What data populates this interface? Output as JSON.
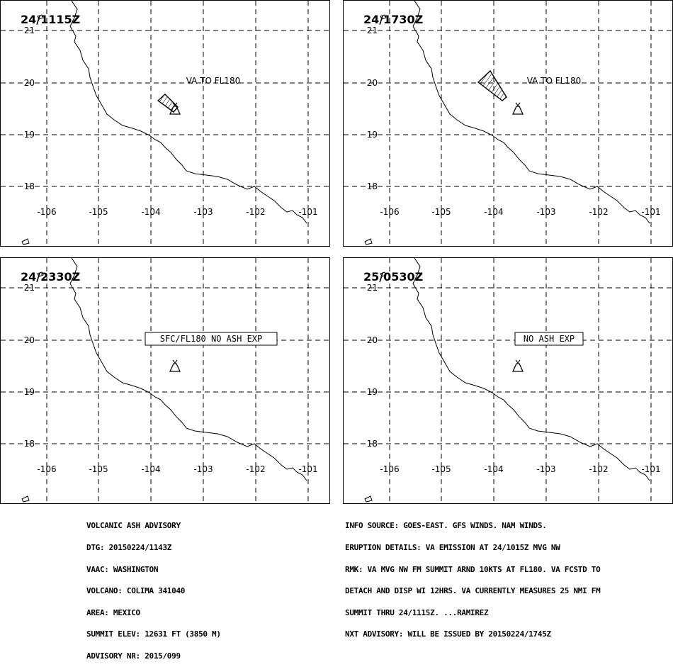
{
  "map": {
    "lon_ticks": [
      "-106",
      "-105",
      "-104",
      "-103",
      "-102",
      "-101"
    ],
    "lat_ticks": [
      "21",
      "20",
      "19",
      "18"
    ],
    "colors": {
      "line": "#000000",
      "background": "#ffffff"
    }
  },
  "panels": [
    {
      "time": "24/1115Z",
      "label": "VA TO FL180",
      "boxed": false
    },
    {
      "time": "24/1730Z",
      "label": "VA TO FL180",
      "boxed": false
    },
    {
      "time": "24/2330Z",
      "label": "SFC/FL180  NO  ASH  EXP",
      "boxed": true
    },
    {
      "time": "25/0530Z",
      "label": "NO  ASH  EXP",
      "boxed": true
    }
  ],
  "advisory_left": {
    "lines": [
      "VOLCANIC ASH ADVISORY",
      "DTG: 20150224/1143Z",
      "VAAC: WASHINGTON",
      "VOLCANO: COLIMA 341040",
      "AREA: MEXICO",
      "SUMMIT ELEV: 12631 FT (3850 M)",
      "ADVISORY NR: 2015/099"
    ]
  },
  "advisory_right": {
    "lines": [
      "INFO SOURCE: GOES-EAST. GFS WINDS. NAM WINDS.",
      "ERUPTION DETAILS: VA EMISSION AT 24/1015Z MVG NW",
      "RMK: VA MVG NW FM SUMMIT ARND 10KTS AT FL180. VA FCSTD TO",
      "DETACH AND DISP WI 12HRS. VA CURRENTLY MEASURES 25 NMI FM",
      "SUMMIT THRU 24/1115Z. ...RAMIREZ",
      "NXT ADVISORY: WILL BE ISSUED BY 20150224/1745Z"
    ]
  }
}
